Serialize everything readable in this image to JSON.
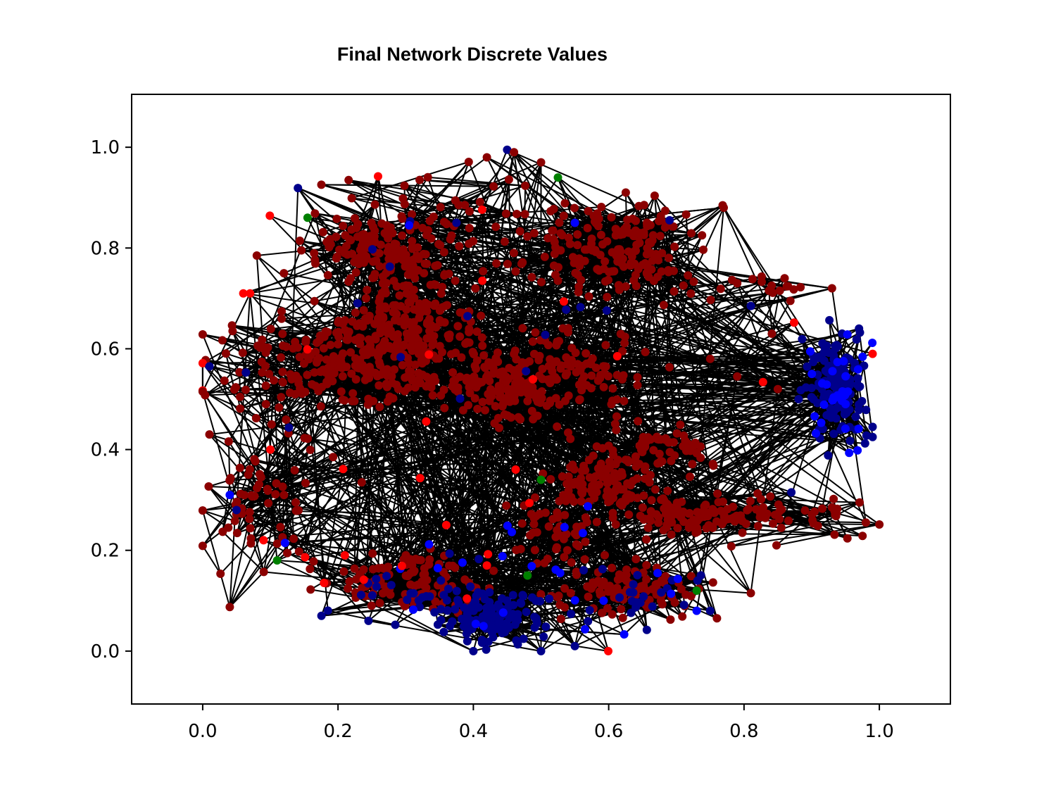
{
  "chart_data": {
    "type": "scatter",
    "title": "Final Network Discrete Values",
    "xlabel": "",
    "ylabel": "",
    "xlim": [
      -0.105,
      1.105
    ],
    "ylim": [
      -0.105,
      1.105
    ],
    "x_ticks": [
      "0.0",
      "0.2",
      "0.4",
      "0.6",
      "0.8",
      "1.0"
    ],
    "y_ticks": [
      "0.0",
      "0.2",
      "0.4",
      "0.6",
      "0.8",
      "1.0"
    ],
    "grid": false,
    "legend": "none",
    "edge_color": "#000000",
    "colors": {
      "darkred": "#8b0000",
      "red": "#ff0000",
      "darkblue": "#00008b",
      "blue": "#0000ff",
      "green": "#008000"
    },
    "clusters": [
      {
        "color": "darkred",
        "cx": 0.23,
        "cy": 0.8,
        "sx": 0.04,
        "sy": 0.035,
        "n": 80
      },
      {
        "color": "darkred",
        "cx": 0.31,
        "cy": 0.76,
        "sx": 0.04,
        "sy": 0.04,
        "n": 90
      },
      {
        "color": "darkred",
        "cx": 0.22,
        "cy": 0.57,
        "sx": 0.06,
        "sy": 0.04,
        "n": 180
      },
      {
        "color": "darkred",
        "cx": 0.31,
        "cy": 0.63,
        "sx": 0.05,
        "sy": 0.05,
        "n": 170
      },
      {
        "color": "darkred",
        "cx": 0.44,
        "cy": 0.53,
        "sx": 0.045,
        "sy": 0.035,
        "n": 150
      },
      {
        "color": "darkred",
        "cx": 0.55,
        "cy": 0.55,
        "sx": 0.045,
        "sy": 0.04,
        "n": 90
      },
      {
        "color": "darkred",
        "cx": 0.62,
        "cy": 0.8,
        "sx": 0.06,
        "sy": 0.05,
        "n": 180
      },
      {
        "color": "darkred",
        "cx": 0.6,
        "cy": 0.34,
        "sx": 0.04,
        "sy": 0.035,
        "n": 110
      },
      {
        "color": "darkred",
        "cx": 0.67,
        "cy": 0.4,
        "sx": 0.035,
        "sy": 0.025,
        "n": 60
      },
      {
        "color": "darkred",
        "cx": 0.73,
        "cy": 0.27,
        "sx": 0.06,
        "sy": 0.02,
        "n": 100
      },
      {
        "color": "darkred",
        "cx": 0.52,
        "cy": 0.24,
        "sx": 0.03,
        "sy": 0.03,
        "n": 50
      },
      {
        "color": "darkred",
        "cx": 0.3,
        "cy": 0.14,
        "sx": 0.06,
        "sy": 0.03,
        "n": 110
      },
      {
        "color": "darkred",
        "cx": 0.63,
        "cy": 0.12,
        "sx": 0.05,
        "sy": 0.03,
        "n": 100
      },
      {
        "color": "darkred",
        "cx": 0.37,
        "cy": 0.87,
        "sx": 0.09,
        "sy": 0.05,
        "n": 40
      },
      {
        "color": "darkred",
        "cx": 0.08,
        "cy": 0.3,
        "sx": 0.04,
        "sy": 0.08,
        "n": 60
      },
      {
        "color": "darkred",
        "cx": 0.1,
        "cy": 0.55,
        "sx": 0.05,
        "sy": 0.05,
        "n": 40
      },
      {
        "color": "darkred",
        "cx": 0.87,
        "cy": 0.27,
        "sx": 0.06,
        "sy": 0.03,
        "n": 30
      },
      {
        "color": "darkred",
        "cx": 0.86,
        "cy": 0.71,
        "sx": 0.05,
        "sy": 0.02,
        "n": 15
      },
      {
        "color": "darkblue",
        "cx": 0.94,
        "cy": 0.53,
        "sx": 0.02,
        "sy": 0.05,
        "n": 140
      },
      {
        "color": "blue",
        "cx": 0.94,
        "cy": 0.52,
        "sx": 0.02,
        "sy": 0.05,
        "n": 30
      },
      {
        "color": "darkblue",
        "cx": 0.42,
        "cy": 0.07,
        "sx": 0.035,
        "sy": 0.025,
        "n": 120
      },
      {
        "color": "darkblue",
        "cx": 0.33,
        "cy": 0.12,
        "sx": 0.07,
        "sy": 0.04,
        "n": 30
      },
      {
        "color": "darkblue",
        "cx": 0.64,
        "cy": 0.1,
        "sx": 0.05,
        "sy": 0.03,
        "n": 25
      },
      {
        "color": "blue",
        "cx": 0.45,
        "cy": 0.15,
        "sx": 0.15,
        "sy": 0.06,
        "n": 25
      },
      {
        "color": "darkblue",
        "cx": 0.4,
        "cy": 0.65,
        "sx": 0.15,
        "sy": 0.12,
        "n": 15
      },
      {
        "color": "red",
        "cx": 0.4,
        "cy": 0.45,
        "sx": 0.25,
        "sy": 0.25,
        "n": 25
      }
    ],
    "points": [
      {
        "x": 0.45,
        "y": 0.995,
        "color": "darkblue"
      },
      {
        "x": 0.525,
        "y": 0.94,
        "color": "green"
      },
      {
        "x": 0.155,
        "y": 0.86,
        "color": "green"
      },
      {
        "x": 0.5,
        "y": 0.34,
        "color": "green"
      },
      {
        "x": 0.11,
        "y": 0.18,
        "color": "green"
      },
      {
        "x": 0.48,
        "y": 0.15,
        "color": "green"
      },
      {
        "x": 0.73,
        "y": 0.12,
        "color": "green"
      },
      {
        "x": 0.06,
        "y": 0.71,
        "color": "red"
      },
      {
        "x": 0.07,
        "y": 0.71,
        "color": "red"
      },
      {
        "x": 0.99,
        "y": 0.59,
        "color": "red"
      },
      {
        "x": 0.09,
        "y": 0.22,
        "color": "red"
      },
      {
        "x": 0.36,
        "y": 0.25,
        "color": "red"
      },
      {
        "x": 0.42,
        "y": 0.17,
        "color": "red"
      },
      {
        "x": 0.21,
        "y": 0.19,
        "color": "red"
      },
      {
        "x": 0.1,
        "y": 0.4,
        "color": "red"
      },
      {
        "x": 0.99,
        "y": 0.425,
        "color": "darkblue"
      },
      {
        "x": 0.99,
        "y": 0.445,
        "color": "darkblue"
      },
      {
        "x": 0.97,
        "y": 0.64,
        "color": "darkblue"
      },
      {
        "x": 0.87,
        "y": 0.315,
        "color": "darkblue"
      },
      {
        "x": 0.81,
        "y": 0.685,
        "color": "darkblue"
      },
      {
        "x": 0.01,
        "y": 0.565,
        "color": "darkblue"
      },
      {
        "x": 0.04,
        "y": 0.31,
        "color": "blue"
      },
      {
        "x": 0.05,
        "y": 0.28,
        "color": "darkblue"
      },
      {
        "x": 0.305,
        "y": 0.845,
        "color": "blue"
      },
      {
        "x": 0.375,
        "y": 0.85,
        "color": "darkblue"
      },
      {
        "x": 0.55,
        "y": 0.85,
        "color": "blue"
      },
      {
        "x": 0.69,
        "y": 0.855,
        "color": "darkblue"
      },
      {
        "x": 0.4,
        "y": 0.0,
        "color": "darkblue"
      },
      {
        "x": 0.5,
        "y": 0.0,
        "color": "darkblue"
      },
      {
        "x": 0.55,
        "y": 0.01,
        "color": "darkblue"
      },
      {
        "x": 0.245,
        "y": 0.06,
        "color": "darkblue"
      },
      {
        "x": 0.73,
        "y": 0.08,
        "color": "blue"
      },
      {
        "x": 0.75,
        "y": 0.08,
        "color": "darkblue"
      },
      {
        "x": 0.81,
        "y": 0.115,
        "color": "darkred"
      },
      {
        "x": 0.79,
        "y": 0.545,
        "color": "darkred"
      },
      {
        "x": 0.85,
        "y": 0.52,
        "color": "darkred"
      },
      {
        "x": 0.235,
        "y": 0.335,
        "color": "darkred"
      },
      {
        "x": 0.0,
        "y": 0.515,
        "color": "darkred"
      },
      {
        "x": 0.01,
        "y": 0.43,
        "color": "darkred"
      },
      {
        "x": 0.76,
        "y": 0.065,
        "color": "darkred"
      },
      {
        "x": 0.98,
        "y": 0.255,
        "color": "darkred"
      },
      {
        "x": 0.86,
        "y": 0.74,
        "color": "darkred"
      },
      {
        "x": 0.93,
        "y": 0.72,
        "color": "darkred"
      },
      {
        "x": 0.75,
        "y": 0.58,
        "color": "darkred"
      },
      {
        "x": 0.79,
        "y": 0.73,
        "color": "darkred"
      },
      {
        "x": 0.77,
        "y": 0.88,
        "color": "darkred"
      },
      {
        "x": 0.08,
        "y": 0.785,
        "color": "darkred"
      },
      {
        "x": 0.12,
        "y": 0.75,
        "color": "darkred"
      },
      {
        "x": 0.5,
        "y": 0.97,
        "color": "darkred"
      },
      {
        "x": 0.46,
        "y": 0.99,
        "color": "darkred"
      },
      {
        "x": 0.42,
        "y": 0.98,
        "color": "darkred"
      }
    ]
  }
}
